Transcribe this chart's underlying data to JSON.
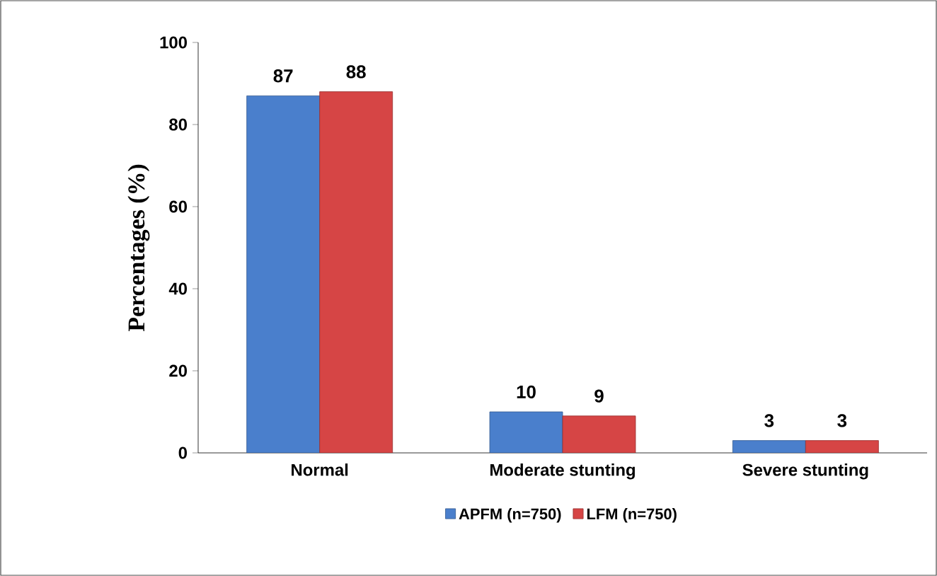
{
  "chart_data": {
    "type": "bar",
    "ylabel": "Percentages (%)",
    "categories": [
      "Normal",
      "Moderate stunting",
      "Severe stunting"
    ],
    "series": [
      {
        "name": "APFM (n=750)",
        "color": "#4a7fcc",
        "values": [
          87,
          10,
          3
        ]
      },
      {
        "name": "LFM (n=750)",
        "color": "#d64545",
        "values": [
          88,
          9,
          3
        ]
      }
    ],
    "ylim": [
      0,
      100
    ],
    "yticks": [
      0,
      20,
      40,
      60,
      80,
      100
    ],
    "data_labels": true,
    "legend": "bottom"
  }
}
